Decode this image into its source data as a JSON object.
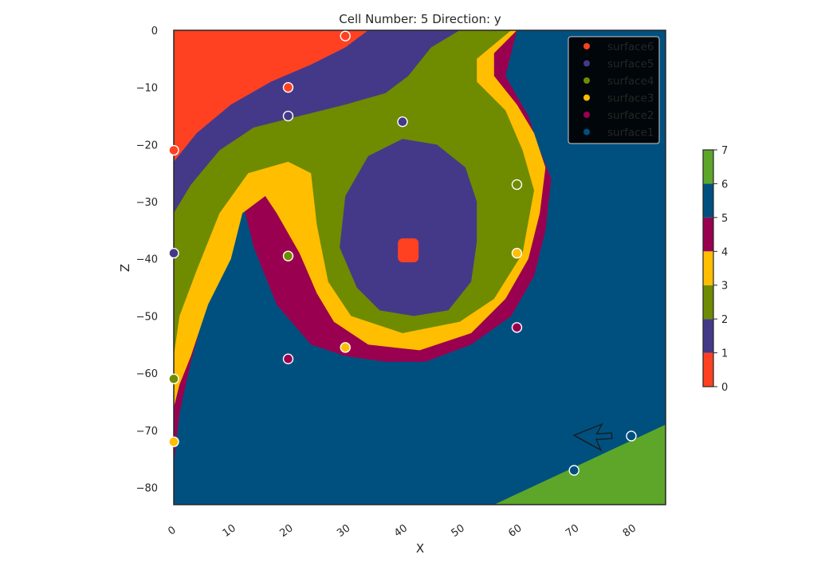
{
  "chart_data": {
    "type": "heatmap",
    "title": "Cell Number: 5 Direction: y",
    "xlabel": "X",
    "ylabel": "Z",
    "xlim": [
      0,
      86
    ],
    "ylim": [
      -83,
      0
    ],
    "x_ticks": [
      "0",
      "10",
      "20",
      "30",
      "40",
      "50",
      "60",
      "70",
      "80"
    ],
    "y_ticks": [
      "0",
      "−10",
      "−20",
      "−30",
      "−40",
      "−50",
      "−60",
      "−70",
      "−80"
    ],
    "colors": {
      "surface6": "#ff4122",
      "surface5": "#443988",
      "surface4": "#6f8b00",
      "surface3": "#ffbe00",
      "surface2": "#9a0050",
      "surface1": "#00507f",
      "basement": "#5da629"
    },
    "legend": {
      "placement": "top-right",
      "entries": [
        "surface6",
        "surface5",
        "surface4",
        "surface3",
        "surface2",
        "surface1"
      ]
    },
    "colorbar": {
      "ticks": [
        "0",
        "1",
        "2",
        "3",
        "4",
        "5",
        "6",
        "7"
      ],
      "levels": [
        {
          "from": 0,
          "to": 1,
          "color": "#ff4122"
        },
        {
          "from": 1,
          "to": 2,
          "color": "#443988"
        },
        {
          "from": 2,
          "to": 3,
          "color": "#6f8b00"
        },
        {
          "from": 3,
          "to": 4,
          "color": "#ffbe00"
        },
        {
          "from": 4,
          "to": 5,
          "color": "#9a0050"
        },
        {
          "from": 5,
          "to": 6,
          "color": "#00507f"
        },
        {
          "from": 6,
          "to": 7,
          "color": "#5da629"
        }
      ]
    },
    "points": [
      {
        "x": 30,
        "z": -1,
        "surface": "surface6"
      },
      {
        "x": 20,
        "z": -10,
        "surface": "surface6"
      },
      {
        "x": 0,
        "z": -21,
        "surface": "surface6"
      },
      {
        "x": 20,
        "z": -15,
        "surface": "surface5"
      },
      {
        "x": 40,
        "z": -16,
        "surface": "surface5"
      },
      {
        "x": 0,
        "z": -39,
        "surface": "surface5"
      },
      {
        "x": 60,
        "z": -27,
        "surface": "surface4"
      },
      {
        "x": 20,
        "z": -39.5,
        "surface": "surface4"
      },
      {
        "x": 0,
        "z": -61,
        "surface": "surface4"
      },
      {
        "x": 60,
        "z": -39,
        "surface": "surface3"
      },
      {
        "x": 30,
        "z": -55.5,
        "surface": "surface3"
      },
      {
        "x": 0,
        "z": -72,
        "surface": "surface3"
      },
      {
        "x": 60,
        "z": -52,
        "surface": "surface2"
      },
      {
        "x": 20,
        "z": -57.5,
        "surface": "surface2"
      },
      {
        "x": 80,
        "z": -71,
        "surface": "surface1"
      },
      {
        "x": 70,
        "z": -77,
        "surface": "surface1"
      }
    ],
    "regions": {
      "surface6": [
        [
          0,
          0
        ],
        [
          34,
          0
        ],
        [
          30,
          -3
        ],
        [
          24,
          -6
        ],
        [
          17,
          -9
        ],
        [
          10,
          -13
        ],
        [
          4,
          -18
        ],
        [
          0,
          -23
        ]
      ],
      "surface5_band": [
        [
          0,
          0
        ],
        [
          50,
          0
        ],
        [
          45,
          -3
        ],
        [
          41,
          -8
        ],
        [
          37,
          -11
        ],
        [
          30,
          -13
        ],
        [
          22,
          -15
        ],
        [
          14,
          -17
        ],
        [
          8,
          -21
        ],
        [
          3,
          -27
        ],
        [
          0,
          -32
        ]
      ],
      "surface4_band": [
        [
          0,
          0
        ],
        [
          55,
          0
        ],
        [
          48,
          -6
        ],
        [
          46,
          -11
        ],
        [
          50,
          -14
        ],
        [
          55,
          -18
        ],
        [
          58,
          -24
        ],
        [
          60,
          -30
        ],
        [
          58,
          -37
        ],
        [
          54,
          -44
        ],
        [
          48,
          -48
        ],
        [
          38,
          -51
        ],
        [
          30,
          -50
        ],
        [
          26,
          -46
        ],
        [
          23,
          -37
        ],
        [
          22,
          -27
        ],
        [
          16,
          -22
        ],
        [
          9,
          -24
        ],
        [
          4,
          -30
        ],
        [
          0,
          -38
        ]
      ],
      "surface3_band": [
        [
          0,
          0
        ],
        [
          59,
          0
        ],
        [
          53,
          -5
        ],
        [
          53,
          -9
        ],
        [
          58,
          -14
        ],
        [
          61,
          -21
        ],
        [
          63,
          -28
        ],
        [
          61,
          -39
        ],
        [
          56,
          -47
        ],
        [
          50,
          -51
        ],
        [
          40,
          -53
        ],
        [
          31,
          -50
        ],
        [
          27,
          -44
        ],
        [
          25,
          -34
        ],
        [
          24,
          -25
        ],
        [
          20,
          -23
        ],
        [
          13,
          -25
        ],
        [
          8,
          -32
        ],
        [
          4,
          -42
        ],
        [
          1,
          -50
        ],
        [
          0,
          -57
        ]
      ],
      "surface2_band": [
        [
          0,
          0
        ],
        [
          60,
          0
        ],
        [
          56,
          -4
        ],
        [
          56,
          -8
        ],
        [
          60,
          -13
        ],
        [
          63,
          -18
        ],
        [
          65,
          -24
        ],
        [
          64,
          -32
        ],
        [
          62,
          -40
        ],
        [
          58,
          -47
        ],
        [
          52,
          -53
        ],
        [
          43,
          -56
        ],
        [
          34,
          -55
        ],
        [
          28,
          -51
        ],
        [
          25,
          -46
        ],
        [
          22,
          -39
        ],
        [
          18,
          -32
        ],
        [
          16,
          -29
        ],
        [
          12,
          -32
        ],
        [
          10,
          -40
        ],
        [
          6,
          -48
        ],
        [
          3,
          -57
        ],
        [
          1,
          -62
        ],
        [
          0,
          -66
        ]
      ],
      "surface1_band": [
        [
          0,
          0
        ],
        [
          60,
          0
        ],
        [
          58,
          -8
        ],
        [
          62,
          -15
        ],
        [
          64,
          -21
        ],
        [
          66,
          -26
        ],
        [
          65,
          -35
        ],
        [
          63,
          -43
        ],
        [
          59,
          -50
        ],
        [
          52,
          -55
        ],
        [
          44,
          -58
        ],
        [
          37,
          -58
        ],
        [
          30,
          -57
        ],
        [
          24,
          -55
        ],
        [
          18,
          -48
        ],
        [
          14,
          -38
        ],
        [
          12,
          -30
        ],
        [
          10,
          -35
        ],
        [
          6,
          -47
        ],
        [
          3,
          -58
        ],
        [
          1,
          -67
        ],
        [
          0,
          -76
        ]
      ],
      "core": [
        [
          40,
          -19
        ],
        [
          46,
          -20
        ],
        [
          51,
          -24
        ],
        [
          53,
          -30
        ],
        [
          53,
          -37
        ],
        [
          52,
          -44
        ],
        [
          48,
          -49
        ],
        [
          42,
          -50
        ],
        [
          36,
          -49
        ],
        [
          32,
          -45
        ],
        [
          29,
          -38
        ],
        [
          30,
          -29
        ],
        [
          34,
          -22
        ]
      ],
      "core_spot": {
        "x": 41,
        "z": -38.5
      },
      "basement": [
        [
          56,
          -83
        ],
        [
          86,
          -83
        ],
        [
          86,
          -69
        ]
      ]
    }
  }
}
